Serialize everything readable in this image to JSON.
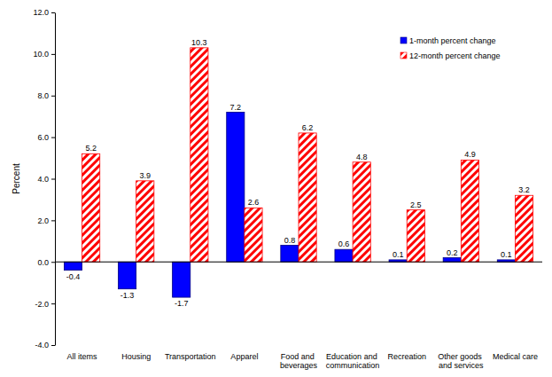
{
  "chart_data": {
    "type": "bar",
    "y_label": "Percent",
    "categories": [
      "All items",
      "Housing",
      "Transportation",
      "Apparel",
      "Food and beverages",
      "Education and communication",
      "Recreation",
      "Other goods and services",
      "Medical care"
    ],
    "series": [
      {
        "name": "1-month percent change",
        "color": "#0000ff",
        "values": [
          -0.4,
          -1.3,
          -1.7,
          7.2,
          0.8,
          0.6,
          0.1,
          0.2,
          0.1
        ]
      },
      {
        "name": "12-month percent change",
        "color": "#ff0000",
        "values": [
          5.2,
          3.9,
          10.3,
          2.6,
          6.2,
          4.8,
          2.5,
          4.9,
          3.2
        ]
      }
    ],
    "ylim": [
      -4,
      12
    ],
    "yticks": [
      {
        "value": -4,
        "label": "-4.0"
      },
      {
        "value": -2,
        "label": "-2.0"
      },
      {
        "value": 0,
        "label": "0.0"
      },
      {
        "value": 2,
        "label": "2.0"
      },
      {
        "value": 4,
        "label": "4.0"
      },
      {
        "value": 6,
        "label": "6.0"
      },
      {
        "value": 8,
        "label": "8.0"
      },
      {
        "value": 10,
        "label": "10.0"
      },
      {
        "value": 12,
        "label": "12.0"
      }
    ],
    "legend": "upper right",
    "data_labels": true,
    "grid": false
  }
}
